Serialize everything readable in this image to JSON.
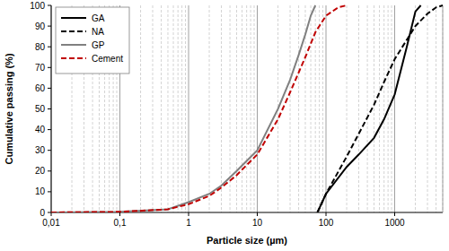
{
  "chart_data": {
    "type": "line",
    "x_label": "Particle size (µm)",
    "y_label": "Cumulative passing (%)",
    "log": "x",
    "grid": "x",
    "legend": "upper left",
    "xlim": [
      0.01,
      5000
    ],
    "ylim": [
      0,
      100
    ],
    "xticks": [
      {
        "value": 0.01,
        "label": "0,01"
      },
      {
        "value": 0.1,
        "label": "0,1"
      },
      1,
      10,
      100,
      1000
    ],
    "yticks": [
      0,
      10,
      20,
      30,
      40,
      50,
      60,
      70,
      80,
      90,
      100
    ],
    "series": [
      {
        "name": "GA",
        "color": "#000000",
        "line_style": "solid",
        "x": [
          75,
          100,
          200,
          300,
          500,
          700,
          1000,
          1500,
          2000,
          2400
        ],
        "values": [
          0,
          9,
          22,
          28,
          36,
          45,
          57,
          80,
          97,
          100
        ]
      },
      {
        "name": "NA",
        "color": "#000000",
        "line_style": "dashed",
        "x": [
          75,
          100,
          200,
          300,
          500,
          700,
          1000,
          2000,
          3000,
          4000,
          5000
        ],
        "values": [
          0,
          9,
          27,
          38,
          52,
          63,
          74,
          90,
          96,
          99,
          100
        ]
      },
      {
        "name": "GP",
        "color": "#808080",
        "line_style": "solid",
        "x": [
          0.01,
          0.1,
          0.5,
          1,
          2,
          3,
          5,
          10,
          20,
          30,
          40,
          50,
          60,
          70
        ],
        "values": [
          0,
          0.3,
          1.5,
          5,
          9,
          13,
          20,
          30,
          50,
          64,
          76,
          86,
          95,
          100
        ]
      },
      {
        "name": "Cement",
        "color": "#c00000",
        "line_style": "dashed",
        "x": [
          0.01,
          0.1,
          0.5,
          1,
          2,
          3,
          5,
          10,
          20,
          30,
          50,
          70,
          100,
          150,
          200
        ],
        "values": [
          0,
          0.3,
          1.5,
          4,
          8,
          12,
          18,
          28,
          45,
          58,
          75,
          87,
          95,
          99,
          100
        ]
      }
    ]
  }
}
